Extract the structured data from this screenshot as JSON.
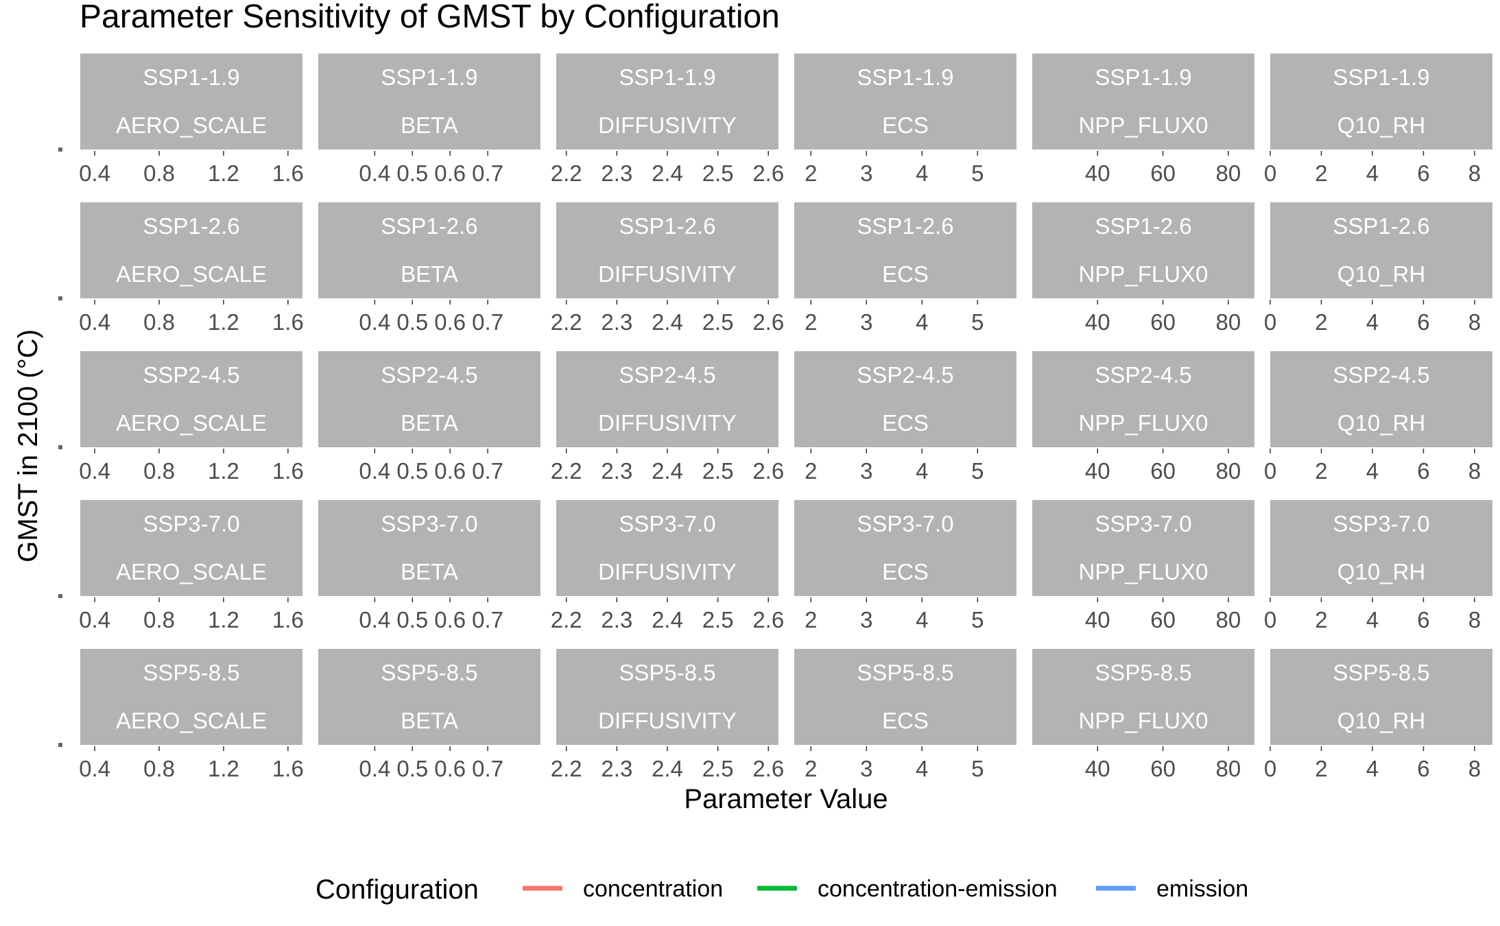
{
  "chart_data": {
    "type": "line",
    "title": "Parameter Sensitivity of GMST by Configuration",
    "xlabel": "Parameter Value",
    "ylabel": "GMST in 2100 (°C)",
    "legend": {
      "title": "Configuration",
      "placement": "bottom",
      "entries": [
        {
          "name": "concentration",
          "color": "#F8766D"
        },
        {
          "name": "concentration-emission",
          "color": "#00BA38"
        },
        {
          "name": "emission",
          "color": "#619CFF"
        }
      ]
    },
    "facet_rows": [
      "SSP1-1.9",
      "SSP1-2.6",
      "SSP2-4.5",
      "SSP3-7.0",
      "SSP5-8.5"
    ],
    "facet_cols": [
      {
        "param": "AERO_SCALE",
        "xlim": [
          0.31,
          1.69
        ],
        "ticks": [
          "0.4",
          "0.8",
          "1.2",
          "1.6"
        ],
        "tick_values": [
          0.4,
          0.8,
          1.2,
          1.6
        ]
      },
      {
        "param": "BETA",
        "xlim": [
          0.25,
          0.84
        ],
        "ticks": [
          "0.4",
          "0.5",
          "0.6",
          "0.7"
        ],
        "tick_values": [
          0.4,
          0.5,
          0.6,
          0.7
        ]
      },
      {
        "param": "DIFFUSIVITY",
        "xlim": [
          2.18,
          2.62
        ],
        "ticks": [
          "2.2",
          "2.3",
          "2.4",
          "2.5",
          "2.6"
        ],
        "tick_values": [
          2.2,
          2.3,
          2.4,
          2.5,
          2.6
        ]
      },
      {
        "param": "ECS",
        "xlim": [
          1.7,
          5.7
        ],
        "ticks": [
          "2",
          "3",
          "4",
          "5"
        ],
        "tick_values": [
          2,
          3,
          4,
          5
        ]
      },
      {
        "param": "NPP_FLUX0",
        "xlim": [
          20,
          88
        ],
        "ticks": [
          "40",
          "60",
          "80"
        ],
        "tick_values": [
          40,
          60,
          80
        ]
      },
      {
        "param": "Q10_RH",
        "xlim": [
          0,
          8.7
        ],
        "ticks": [
          "0",
          "2",
          "4",
          "6",
          "8"
        ],
        "tick_values": [
          0,
          2,
          4,
          6,
          8
        ]
      }
    ]
  },
  "colors": {
    "strip_fill": "#B3B3B3",
    "strip_text": "#FFFFFF",
    "axis_text": "#4D4D4D",
    "tick": "#333333"
  }
}
